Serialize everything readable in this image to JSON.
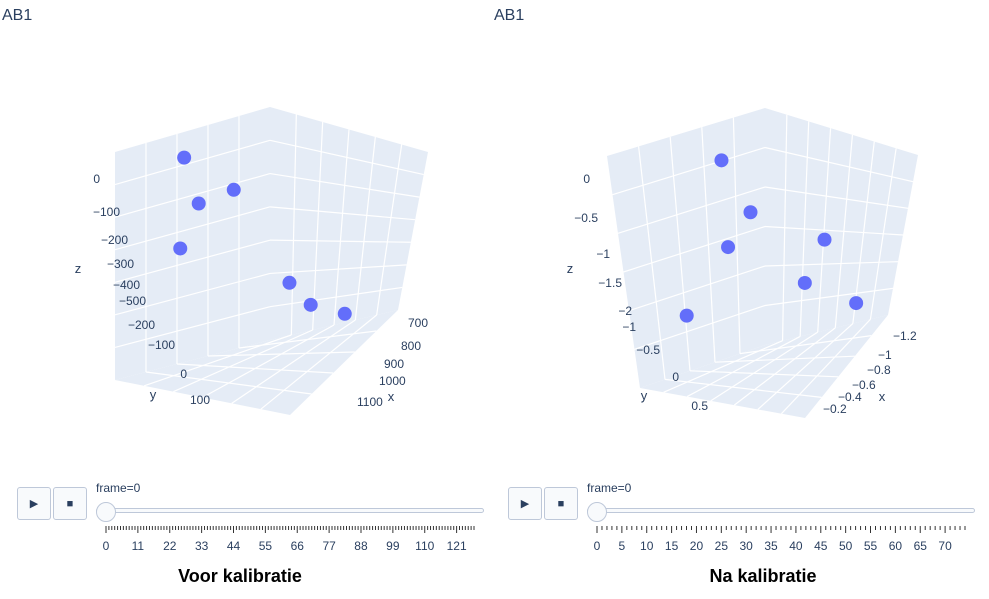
{
  "colors": {
    "marker": "#636efa",
    "pane": "#e5ecf6",
    "grid": "#ffffff",
    "text": "#2a3f5f",
    "control_border": "#bec8d9",
    "control_bg": "#f8fafc"
  },
  "icons": {
    "play": "play-icon",
    "stop": "stop-icon"
  },
  "buttons": {
    "play_symbol": "▶",
    "stop_symbol": "■"
  },
  "chart_data": [
    {
      "type": "scatter3d",
      "title": "AB1",
      "caption": "Voor kalibratie",
      "axes": {
        "x": {
          "label": "x",
          "ticks": [
            "700",
            "800",
            "900",
            "1000",
            "1100"
          ]
        },
        "y": {
          "label": "y",
          "ticks": [
            "−200",
            "−100",
            "0",
            "100"
          ]
        },
        "z": {
          "label": "z",
          "ticks": [
            "0",
            "−100",
            "−200",
            "−300",
            "−400",
            "−500"
          ]
        }
      },
      "points": [
        {
          "x": 780,
          "y": -200,
          "z": -40
        },
        {
          "x": 860,
          "y": -120,
          "z": -130
        },
        {
          "x": 720,
          "y": -170,
          "z": -240
        },
        {
          "x": 950,
          "y": 40,
          "z": -430
        },
        {
          "x": 700,
          "y": -110,
          "z": -120
        },
        {
          "x": 900,
          "y": 10,
          "z": -360
        },
        {
          "x": 1080,
          "y": 60,
          "z": -510
        }
      ],
      "slider": {
        "label": "frame=0",
        "ticks": [
          "0",
          "11",
          "22",
          "33",
          "44",
          "55",
          "66",
          "77",
          "88",
          "99",
          "110",
          "121"
        ],
        "max": 127,
        "current": 0
      }
    },
    {
      "type": "scatter3d",
      "title": "AB1",
      "caption": "Na kalibratie",
      "axes": {
        "x": {
          "label": "x",
          "ticks": [
            "−1.2",
            "−1",
            "−0.8",
            "−0.6",
            "−0.4",
            "−0.2"
          ]
        },
        "y": {
          "label": "y",
          "ticks": [
            "−1",
            "−0.5",
            "0",
            "0.5"
          ]
        },
        "z": {
          "label": "z",
          "ticks": [
            "0",
            "−0.5",
            "−1",
            "−1.5",
            "−2"
          ]
        }
      },
      "points": [
        {
          "x": -0.9,
          "y": -0.8,
          "z": -0.15
        },
        {
          "x": -0.75,
          "y": -0.55,
          "z": -0.7
        },
        {
          "x": -0.95,
          "y": -0.65,
          "z": -0.95
        },
        {
          "x": -0.5,
          "y": 0.3,
          "z": -1.1
        },
        {
          "x": -0.6,
          "y": 0.1,
          "z": -1.45
        },
        {
          "x": -1.15,
          "y": -1.1,
          "z": -1.55
        },
        {
          "x": -0.2,
          "y": 0.6,
          "z": -1.9
        }
      ],
      "slider": {
        "label": "frame=0",
        "ticks": [
          "0",
          "5",
          "10",
          "15",
          "20",
          "25",
          "30",
          "35",
          "40",
          "45",
          "50",
          "55",
          "60",
          "65",
          "70"
        ],
        "max": 74,
        "current": 0
      }
    }
  ]
}
